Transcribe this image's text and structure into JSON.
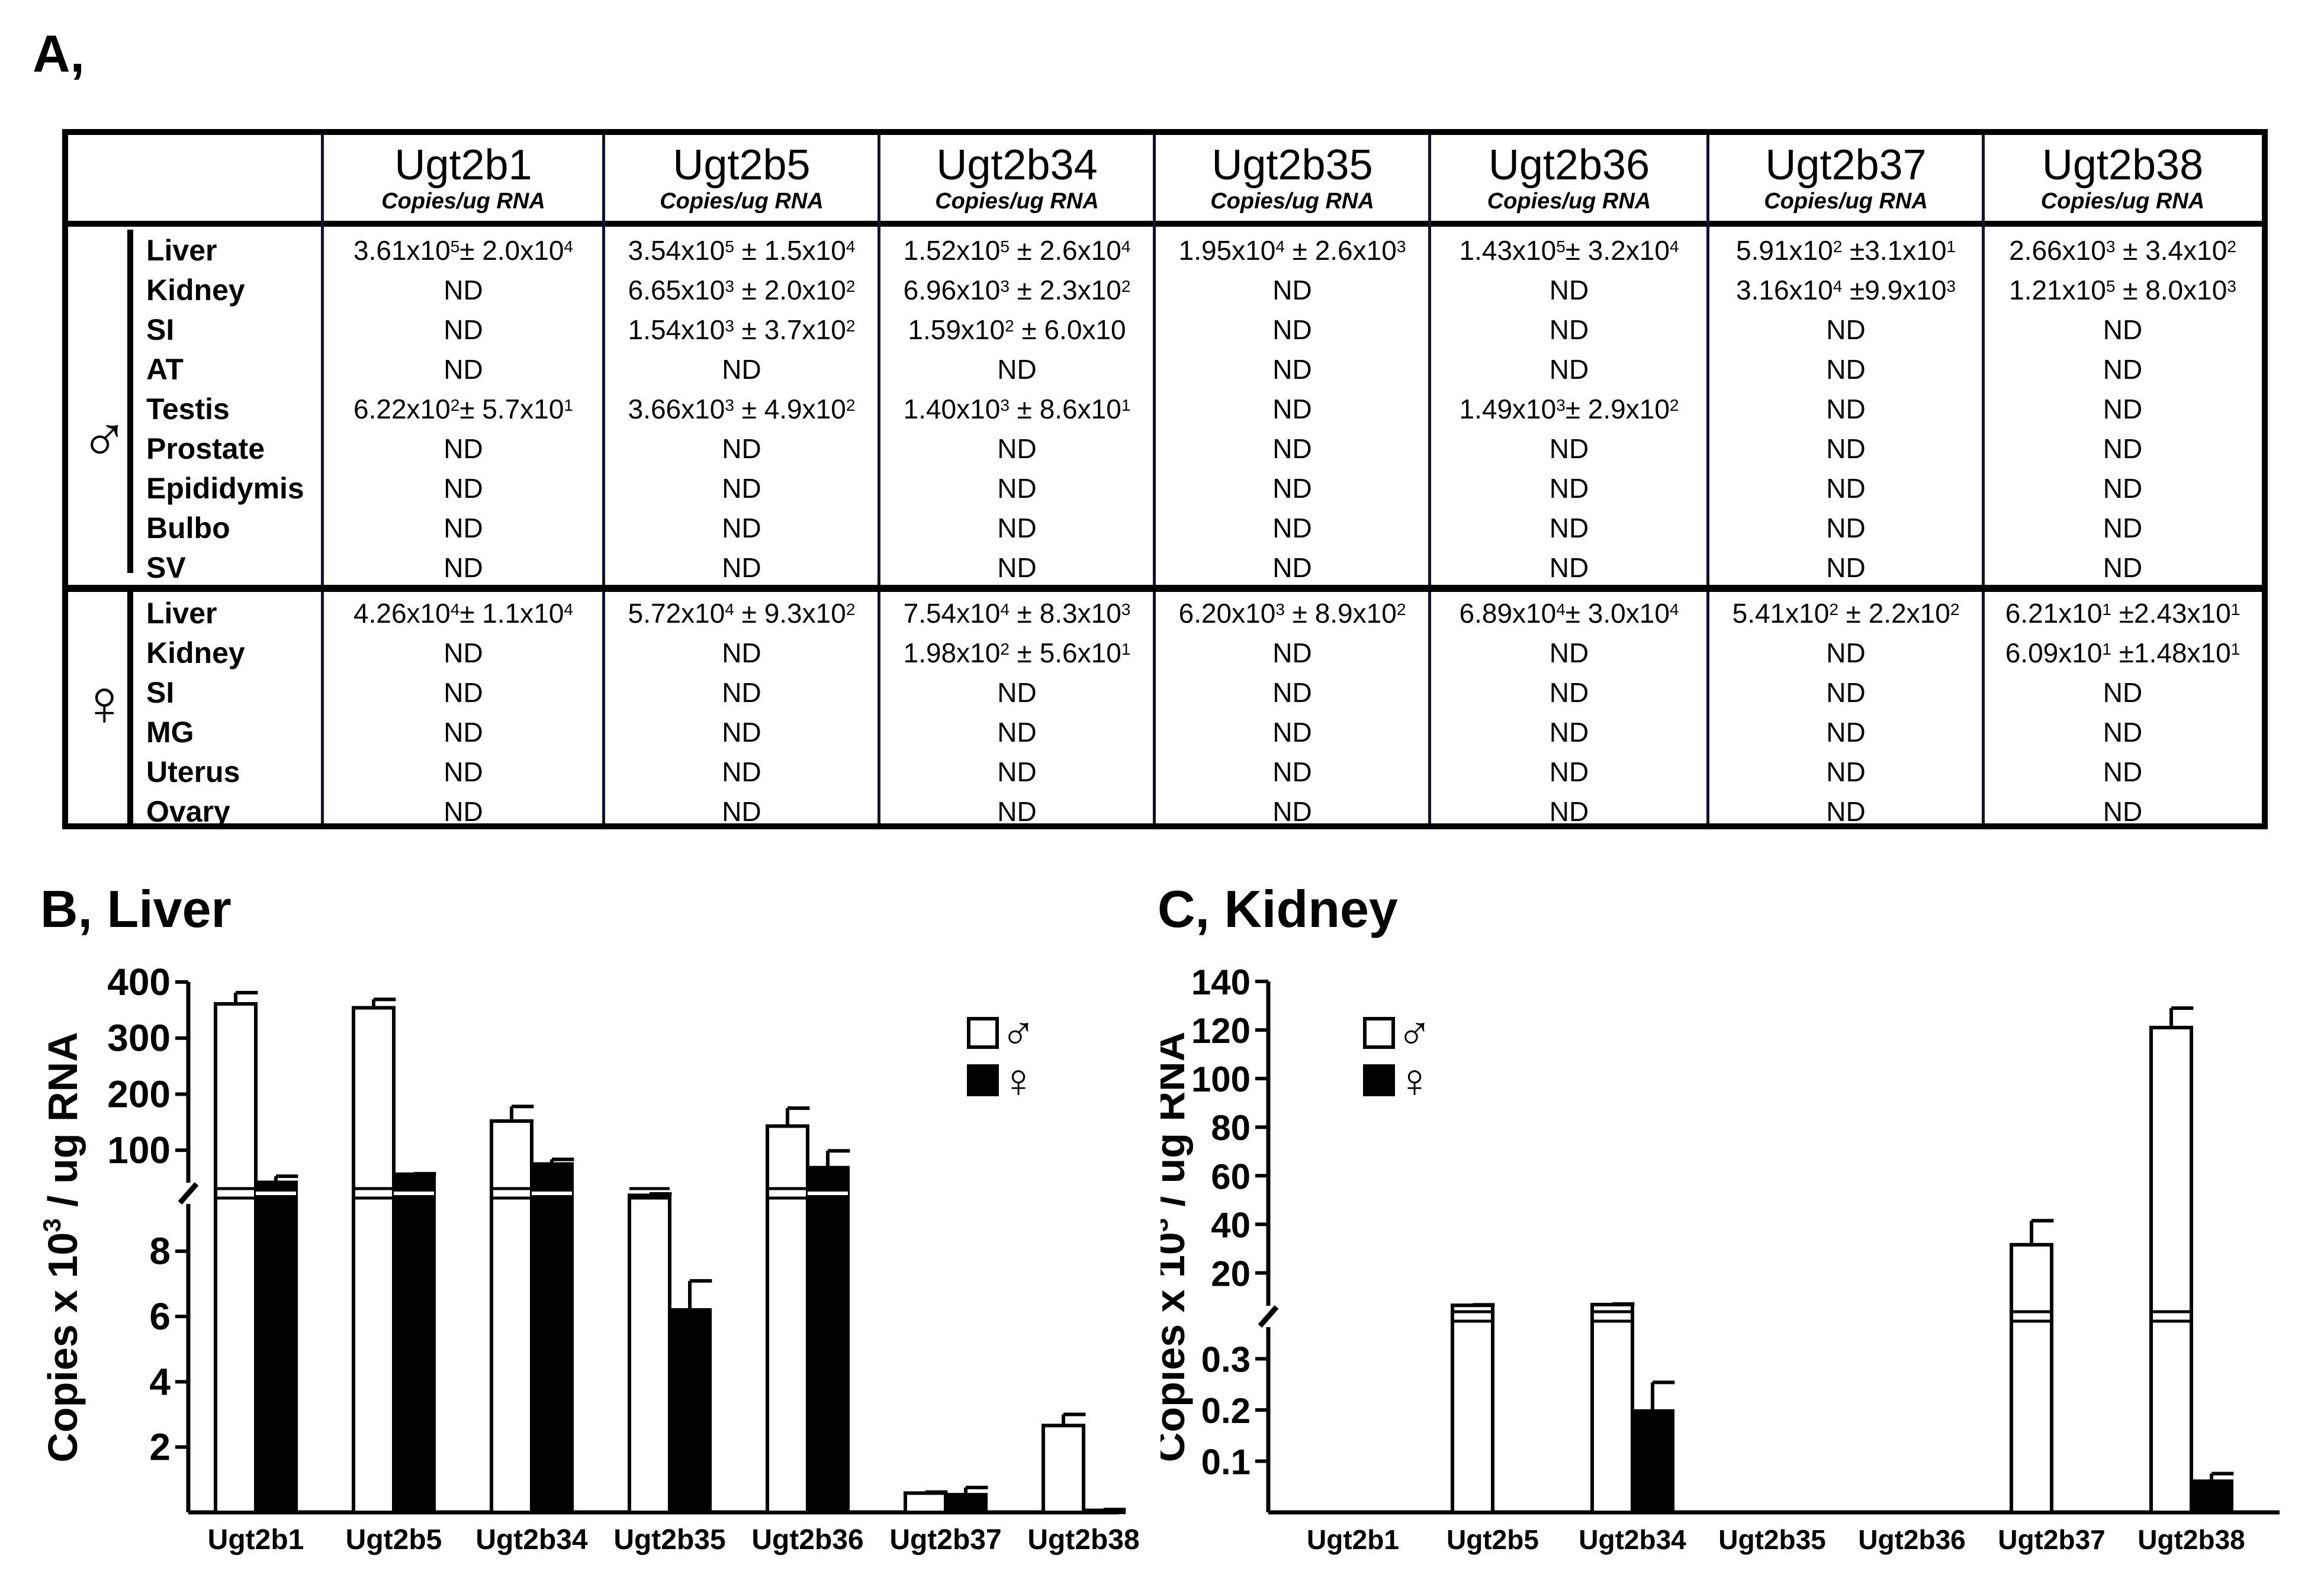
{
  "panel_a": {
    "label": "A,",
    "columns": [
      {
        "name": "Ugt2b1",
        "unit": "Copies/ug RNA"
      },
      {
        "name": "Ugt2b5",
        "unit": "Copies/ug RNA"
      },
      {
        "name": "Ugt2b34",
        "unit": "Copies/ug RNA"
      },
      {
        "name": "Ugt2b35",
        "unit": "Copies/ug RNA"
      },
      {
        "name": "Ugt2b36",
        "unit": "Copies/ug RNA"
      },
      {
        "name": "Ugt2b37",
        "unit": "Copies/ug RNA"
      },
      {
        "name": "Ugt2b38",
        "unit": "Copies/ug RNA"
      }
    ],
    "male": {
      "symbol": "♂",
      "rows": [
        {
          "tissue": "Liver",
          "values": [
            "3.61x10^5± 2.0x10^4",
            "3.54x10^5 ± 1.5x10^4",
            "1.52x10^5 ± 2.6x10^4",
            "1.95x10^4 ± 2.6x10^3",
            "1.43x10^5± 3.2x10^4",
            "5.91x10^2 ±3.1x10^1",
            "2.66x10^3 ± 3.4x10^2"
          ]
        },
        {
          "tissue": "Kidney",
          "values": [
            "ND",
            "6.65x10^3 ± 2.0x10^2",
            "6.96x10^3 ± 2.3x10^2",
            "ND",
            "ND",
            "3.16x10^4 ±9.9x10^3",
            "1.21x10^5 ± 8.0x10^3"
          ]
        },
        {
          "tissue": "SI",
          "values": [
            "ND",
            "1.54x10^3 ± 3.7x10^2",
            "1.59x10^2 ± 6.0x10",
            "ND",
            "ND",
            "ND",
            "ND"
          ]
        },
        {
          "tissue": "AT",
          "values": [
            "ND",
            "ND",
            "ND",
            "ND",
            "ND",
            "ND",
            "ND"
          ]
        },
        {
          "tissue": "Testis",
          "values": [
            "6.22x10^2± 5.7x10^1",
            "3.66x10^3 ± 4.9x10^2",
            "1.40x10^3 ± 8.6x10^1",
            "ND",
            "1.49x10^3± 2.9x10^2",
            "ND",
            "ND"
          ]
        },
        {
          "tissue": "Prostate",
          "values": [
            "ND",
            "ND",
            "ND",
            "ND",
            "ND",
            "ND",
            "ND"
          ]
        },
        {
          "tissue": "Epididymis",
          "values": [
            "ND",
            "ND",
            "ND",
            "ND",
            "ND",
            "ND",
            "ND"
          ]
        },
        {
          "tissue": "Bulbo",
          "values": [
            "ND",
            "ND",
            "ND",
            "ND",
            "ND",
            "ND",
            "ND"
          ]
        },
        {
          "tissue": "SV",
          "values": [
            "ND",
            "ND",
            "ND",
            "ND",
            "ND",
            "ND",
            "ND"
          ]
        }
      ]
    },
    "female": {
      "symbol": "♀",
      "rows": [
        {
          "tissue": "Liver",
          "values": [
            "4.26x10^4± 1.1x10^4",
            "5.72x10^4 ± 9.3x10^2",
            "7.54x10^4 ± 8.3x10^3",
            "6.20x10^3 ± 8.9x10^2",
            "6.89x10^4± 3.0x10^4",
            "5.41x10^2 ± 2.2x10^2",
            "6.21x10^1 ±2.43x10^1"
          ]
        },
        {
          "tissue": "Kidney",
          "values": [
            "ND",
            "ND",
            "1.98x10^2 ± 5.6x10^1",
            "ND",
            "ND",
            "ND",
            "6.09x10^1 ±1.48x10^1"
          ]
        },
        {
          "tissue": "SI",
          "values": [
            "ND",
            "ND",
            "ND",
            "ND",
            "ND",
            "ND",
            "ND"
          ]
        },
        {
          "tissue": "MG",
          "values": [
            "ND",
            "ND",
            "ND",
            "ND",
            "ND",
            "ND",
            "ND"
          ]
        },
        {
          "tissue": "Uterus",
          "values": [
            "ND",
            "ND",
            "ND",
            "ND",
            "ND",
            "ND",
            "ND"
          ]
        },
        {
          "tissue": "Ovary",
          "values": [
            "ND",
            "ND",
            "ND",
            "ND",
            "ND",
            "ND",
            "ND"
          ]
        }
      ]
    }
  },
  "chart_data": [
    {
      "type": "bar",
      "panel": "B",
      "title": "B, Liver",
      "ylabel": "Copies x 10^3 / ug RNA",
      "ylabel_parts": [
        "Copies x 10",
        "3",
        " / ug RNA"
      ],
      "broken_axis": true,
      "lower_range": [
        0,
        9.5
      ],
      "upper_range": [
        40,
        400
      ],
      "lower_ticks": [
        "2",
        "4",
        "6",
        "8"
      ],
      "upper_ticks": [
        "100",
        "200",
        "300",
        "400"
      ],
      "categories": [
        "Ugt2b1",
        "Ugt2b5",
        "Ugt2b34",
        "Ugt2b35",
        "Ugt2b36",
        "Ugt2b37",
        "Ugt2b38"
      ],
      "series": [
        {
          "name": "male",
          "symbol": "♂",
          "fill": "#ffffff",
          "values": [
            361,
            354,
            152,
            19.5,
            143,
            0.591,
            2.66
          ],
          "errors": [
            20,
            15,
            26,
            2.6,
            32,
            0.031,
            0.34
          ]
        },
        {
          "name": "female",
          "symbol": "♀",
          "fill": "#000000",
          "values": [
            42.6,
            57.2,
            75.4,
            6.2,
            68.9,
            0.541,
            0.0621
          ],
          "errors": [
            11,
            0.93,
            8.3,
            0.89,
            30,
            0.22,
            0.0243
          ]
        }
      ],
      "legend": "top-right"
    },
    {
      "type": "bar",
      "panel": "C",
      "title": "C, Kidney",
      "ylabel": "Copies x 10^3 / ug RNA",
      "ylabel_parts": [
        "Copies x 10",
        "3",
        " / ug RNA"
      ],
      "broken_axis": true,
      "lower_range": [
        0,
        0.37
      ],
      "upper_range": [
        5,
        140
      ],
      "lower_ticks": [
        "0.1",
        "0.2",
        "0.3"
      ],
      "upper_ticks": [
        "20",
        "40",
        "60",
        "80",
        "100",
        "120",
        "140"
      ],
      "categories": [
        "Ugt2b1",
        "Ugt2b5",
        "Ugt2b34",
        "Ugt2b35",
        "Ugt2b36",
        "Ugt2b37",
        "Ugt2b38"
      ],
      "series": [
        {
          "name": "male",
          "symbol": "♂",
          "fill": "#ffffff",
          "values": [
            0,
            6.65,
            6.96,
            0,
            0,
            31.6,
            121
          ],
          "errors": [
            0,
            0.2,
            0.23,
            0,
            0,
            9.9,
            8.0
          ]
        },
        {
          "name": "female",
          "symbol": "♀",
          "fill": "#000000",
          "values": [
            0,
            0,
            0.198,
            0,
            0,
            0,
            0.0609
          ],
          "errors": [
            0,
            0,
            0.056,
            0,
            0,
            0,
            0.0148
          ]
        }
      ],
      "legend": "top-left"
    }
  ]
}
